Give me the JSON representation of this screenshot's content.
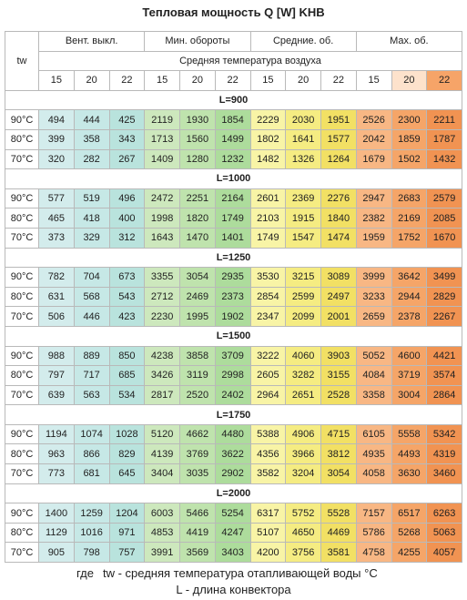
{
  "header": {
    "title": "Тепловая мощность Q [W] KHB",
    "tw_label": "tw",
    "groups": [
      "Вент. выкл.",
      "Мин. обороты",
      "Средние. об.",
      "Мах. об."
    ],
    "subtitle": "Средняя температура воздуха",
    "air_temps": [
      15,
      20,
      22,
      15,
      20,
      22,
      15,
      20,
      22,
      15,
      20,
      22
    ]
  },
  "sections": [
    {
      "label": "L=900",
      "rows": [
        {
          "tw": "90°C",
          "values": [
            494,
            444,
            425,
            2119,
            1930,
            1854,
            2229,
            2030,
            1951,
            2526,
            2300,
            2211
          ]
        },
        {
          "tw": "80°C",
          "values": [
            399,
            358,
            343,
            1713,
            1560,
            1499,
            1802,
            1641,
            1577,
            2042,
            1859,
            1787
          ]
        },
        {
          "tw": "70°C",
          "values": [
            320,
            282,
            267,
            1409,
            1280,
            1232,
            1482,
            1326,
            1264,
            1679,
            1502,
            1432
          ]
        }
      ]
    },
    {
      "label": "L=1000",
      "rows": [
        {
          "tw": "90°C",
          "values": [
            577,
            519,
            496,
            2472,
            2251,
            2164,
            2601,
            2369,
            2276,
            2947,
            2683,
            2579
          ]
        },
        {
          "tw": "80°C",
          "values": [
            465,
            418,
            400,
            1998,
            1820,
            1749,
            2103,
            1915,
            1840,
            2382,
            2169,
            2085
          ]
        },
        {
          "tw": "70°C",
          "values": [
            373,
            329,
            312,
            1643,
            1470,
            1401,
            1749,
            1547,
            1474,
            1959,
            1752,
            1670
          ]
        }
      ]
    },
    {
      "label": "L=1250",
      "rows": [
        {
          "tw": "90°C",
          "values": [
            782,
            704,
            673,
            3355,
            3054,
            2935,
            3530,
            3215,
            3089,
            3999,
            3642,
            3499
          ]
        },
        {
          "tw": "80°C",
          "values": [
            631,
            568,
            543,
            2712,
            2469,
            2373,
            2854,
            2599,
            2497,
            3233,
            2944,
            2829
          ]
        },
        {
          "tw": "70°C",
          "values": [
            506,
            446,
            423,
            2230,
            1995,
            1902,
            2347,
            2099,
            2001,
            2659,
            2378,
            2267
          ]
        }
      ]
    },
    {
      "label": "L=1500",
      "rows": [
        {
          "tw": "90°C",
          "values": [
            988,
            889,
            850,
            4238,
            3858,
            3709,
            3222,
            4060,
            3903,
            5052,
            4600,
            4421
          ]
        },
        {
          "tw": "80°C",
          "values": [
            797,
            717,
            685,
            3426,
            3119,
            2998,
            2605,
            3282,
            3155,
            4084,
            3719,
            3574
          ]
        },
        {
          "tw": "70°C",
          "values": [
            639,
            563,
            534,
            2817,
            2520,
            2402,
            2964,
            2651,
            2528,
            3358,
            3004,
            2864
          ]
        }
      ]
    },
    {
      "label": "L=1750",
      "rows": [
        {
          "tw": "90°C",
          "values": [
            1194,
            1074,
            1028,
            5120,
            4662,
            4480,
            5388,
            4906,
            4715,
            6105,
            5558,
            5342
          ]
        },
        {
          "tw": "80°C",
          "values": [
            963,
            866,
            829,
            4139,
            3769,
            3622,
            4356,
            3966,
            3812,
            4935,
            4493,
            4319
          ]
        },
        {
          "tw": "70°C",
          "values": [
            773,
            681,
            645,
            3404,
            3035,
            2902,
            3582,
            3204,
            3054,
            4058,
            3630,
            3460
          ]
        }
      ]
    },
    {
      "label": "L=2000",
      "rows": [
        {
          "tw": "90°C",
          "values": [
            1400,
            1259,
            1204,
            6003,
            5466,
            5254,
            6317,
            5752,
            5528,
            7157,
            6517,
            6263
          ]
        },
        {
          "tw": "80°C",
          "values": [
            1129,
            1016,
            971,
            4853,
            4419,
            4247,
            5107,
            4650,
            4469,
            5786,
            5268,
            5063
          ]
        },
        {
          "tw": "70°C",
          "values": [
            905,
            798,
            757,
            3991,
            3569,
            3403,
            4200,
            3756,
            3581,
            4758,
            4255,
            4057
          ]
        }
      ]
    }
  ],
  "footer": {
    "where": "где",
    "tw_note": "tw - средняя температура отапливающей воды °C",
    "l_note": "L - длина конвектора"
  }
}
